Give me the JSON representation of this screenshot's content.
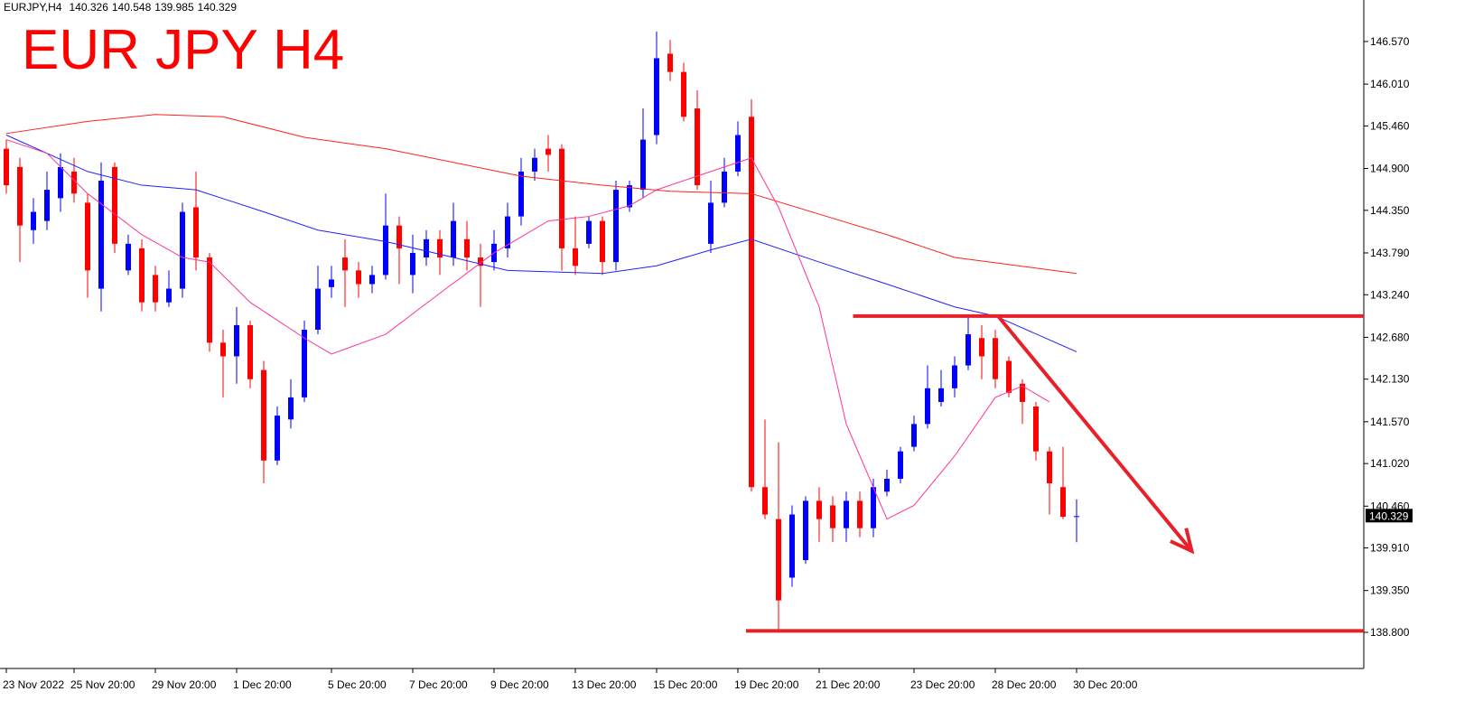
{
  "chart_data": {
    "type": "candlestick",
    "symbol": "EURJPY,H4",
    "title": "EUR JPY H4",
    "categories": [
      "23 Nov 2022",
      null,
      null,
      null,
      null,
      "25 Nov 20:00",
      null,
      null,
      null,
      null,
      null,
      "29 Nov 20:00",
      null,
      null,
      null,
      null,
      null,
      "1 Dec 20:00",
      null,
      null,
      null,
      null,
      null,
      null,
      "5 Dec 20:00",
      null,
      null,
      null,
      null,
      null,
      "7 Dec 20:00",
      null,
      null,
      null,
      null,
      null,
      "9 Dec 20:00",
      null,
      null,
      null,
      null,
      null,
      "13 Dec 20:00",
      null,
      null,
      null,
      null,
      null,
      "15 Dec 20:00",
      null,
      null,
      null,
      null,
      null,
      "19 Dec 20:00",
      null,
      null,
      null,
      null,
      null,
      "21 Dec 20:00",
      null,
      null,
      null,
      null,
      null,
      null,
      "23 Dec 20:00",
      null,
      null,
      null,
      null,
      null,
      "28 Dec 20:00",
      null,
      null,
      null,
      null,
      null,
      "30 Dec 20:00"
    ],
    "open": [
      145.16,
      144.92,
      144.09,
      144.21,
      144.51,
      144.86,
      144.45,
      143.32,
      144.92,
      143.56,
      143.85,
      143.5,
      143.14,
      143.32,
      144.39,
      143.73,
      142.61,
      142.43,
      142.84,
      142.25,
      141.06,
      141.6,
      141.89,
      142.78,
      143.34,
      143.73,
      143.56,
      143.38,
      143.5,
      144.15,
      143.5,
      143.73,
      143.97,
      143.73,
      143.97,
      143.73,
      143.67,
      143.85,
      144.27,
      144.86,
      145.16,
      145.16,
      143.85,
      143.91,
      144.21,
      143.67,
      144.39,
      144.62,
      145.34,
      146.41,
      146.17,
      145.69,
      143.91,
      144.45,
      144.86,
      145.58,
      140.71,
      140.29,
      139.52,
      139.75,
      140.53,
      140.47,
      140.17,
      140.53,
      140.17,
      140.65,
      140.82,
      141.24,
      141.54,
      141.83,
      142.01,
      142.31,
      142.67,
      142.67,
      142.37,
      142.07,
      141.77,
      141.18,
      140.71,
      140.326
    ],
    "high": [
      145.28,
      145.04,
      144.51,
      144.86,
      145.1,
      145.04,
      144.57,
      144.98,
      144.98,
      144.03,
      143.97,
      143.62,
      143.56,
      144.45,
      144.86,
      143.79,
      142.78,
      143.08,
      142.9,
      142.37,
      141.77,
      142.13,
      142.9,
      143.62,
      143.62,
      143.97,
      143.67,
      143.62,
      144.57,
      144.27,
      144.03,
      144.09,
      144.09,
      144.45,
      144.21,
      143.91,
      144.09,
      144.45,
      145.04,
      145.16,
      145.34,
      145.22,
      144.27,
      144.27,
      144.27,
      144.74,
      144.74,
      145.69,
      146.7,
      146.59,
      146.29,
      145.93,
      144.74,
      145.04,
      145.52,
      145.81,
      141.6,
      141.3,
      140.47,
      140.59,
      140.71,
      140.59,
      140.65,
      140.65,
      140.82,
      140.94,
      141.24,
      141.65,
      142.31,
      142.25,
      142.43,
      142.96,
      142.84,
      142.78,
      142.43,
      142.13,
      141.83,
      141.24,
      141.24,
      140.548
    ],
    "low": [
      144.57,
      143.67,
      143.91,
      144.09,
      144.33,
      144.45,
      143.2,
      143.02,
      143.79,
      143.5,
      143.02,
      143.02,
      143.08,
      143.2,
      143.56,
      142.49,
      141.89,
      142.07,
      142.01,
      140.76,
      141.0,
      141.48,
      141.83,
      142.72,
      143.2,
      143.08,
      143.2,
      143.26,
      143.44,
      143.38,
      143.26,
      143.62,
      143.5,
      143.62,
      143.56,
      143.08,
      143.56,
      143.73,
      144.15,
      144.74,
      144.86,
      143.56,
      143.5,
      143.85,
      143.5,
      143.56,
      144.33,
      144.51,
      145.22,
      146.05,
      145.52,
      144.62,
      143.79,
      144.39,
      144.8,
      140.65,
      140.29,
      138.8,
      139.4,
      139.7,
      139.99,
      139.99,
      139.99,
      140.05,
      140.05,
      140.59,
      140.76,
      141.18,
      141.48,
      141.77,
      141.89,
      142.25,
      142.13,
      142.01,
      141.89,
      141.54,
      141.06,
      140.35,
      140.29,
      139.985
    ],
    "close": [
      144.68,
      144.15,
      144.33,
      144.62,
      144.92,
      144.57,
      143.56,
      144.74,
      143.91,
      143.91,
      143.14,
      143.14,
      143.32,
      144.33,
      143.73,
      142.61,
      142.43,
      142.84,
      142.13,
      141.06,
      141.65,
      141.89,
      142.78,
      143.32,
      143.44,
      143.56,
      143.38,
      143.5,
      144.15,
      143.85,
      143.79,
      143.97,
      143.73,
      144.21,
      143.73,
      143.62,
      143.91,
      144.27,
      144.86,
      145.04,
      145.08,
      143.85,
      143.62,
      144.21,
      143.67,
      144.62,
      144.68,
      145.28,
      146.35,
      146.17,
      145.58,
      144.68,
      144.45,
      144.86,
      145.34,
      140.71,
      140.35,
      139.22,
      140.35,
      140.53,
      140.29,
      140.17,
      140.53,
      140.17,
      140.71,
      140.82,
      141.18,
      141.54,
      142.01,
      142.01,
      142.31,
      142.72,
      142.43,
      142.13,
      141.95,
      141.83,
      141.18,
      140.76,
      140.32,
      140.329
    ],
    "up_color": "#0000ff",
    "down_color": "#ff0000",
    "overlays": [
      {
        "color": "#ff2020",
        "x": [
          0,
          6,
          11,
          16,
          22,
          28,
          33,
          38,
          44,
          49,
          55,
          60,
          65,
          70,
          79
        ],
        "values": [
          145.36,
          145.52,
          145.61,
          145.58,
          145.31,
          145.16,
          144.98,
          144.8,
          144.68,
          144.6,
          144.57,
          144.3,
          144.03,
          143.73,
          143.52
        ]
      },
      {
        "color": "#2020ff",
        "x": [
          0,
          6,
          10,
          14,
          19,
          23,
          28,
          33,
          37,
          44,
          48,
          52,
          55,
          60,
          65,
          70,
          73,
          79
        ],
        "values": [
          145.34,
          144.86,
          144.68,
          144.62,
          144.33,
          144.09,
          143.94,
          143.73,
          143.56,
          143.52,
          143.62,
          143.83,
          143.97,
          143.67,
          143.38,
          143.08,
          142.96,
          142.49
        ]
      },
      {
        "color": "#ff3399",
        "x": [
          0,
          3,
          6,
          10,
          13,
          15,
          18,
          22,
          24,
          28,
          32,
          36,
          40,
          43,
          46,
          48,
          52,
          55,
          57,
          60,
          62,
          65,
          67,
          70,
          73,
          75,
          77
        ],
        "values": [
          145.28,
          145.1,
          144.57,
          144.03,
          143.73,
          143.67,
          143.14,
          142.67,
          142.46,
          142.72,
          143.26,
          143.79,
          144.21,
          144.27,
          144.41,
          144.62,
          144.86,
          145.04,
          144.39,
          143.08,
          141.54,
          140.29,
          140.47,
          141.12,
          141.89,
          142.04,
          141.83
        ]
      }
    ],
    "hlines": [
      {
        "value": 142.96,
        "x_start": 62.5
      },
      {
        "value": 138.82,
        "x_start": 54.6
      }
    ],
    "arrow": {
      "x": [
        73.2,
        87.5
      ],
      "y": [
        142.96,
        139.87
      ]
    },
    "annotation_color": "#e8202a",
    "ylim": [
      138.325,
      147.116
    ],
    "yticks": [
      {
        "value": 146.57,
        "label": "146.570"
      },
      {
        "value": 146.01,
        "label": "146.010"
      },
      {
        "value": 145.46,
        "label": "145.460"
      },
      {
        "value": 144.9,
        "label": "144.900"
      },
      {
        "value": 144.35,
        "label": "144.350"
      },
      {
        "value": 143.79,
        "label": "143.790"
      },
      {
        "value": 143.24,
        "label": "143.240"
      },
      {
        "value": 142.68,
        "label": "142.680"
      },
      {
        "value": 142.13,
        "label": "142.130"
      },
      {
        "value": 141.57,
        "label": "141.570"
      },
      {
        "value": 141.02,
        "label": "141.020"
      },
      {
        "value": 140.46,
        "label": "140.460"
      },
      {
        "value": 139.91,
        "label": "139.910"
      },
      {
        "value": 139.35,
        "label": "139.350"
      },
      {
        "value": 138.8,
        "label": "138.800"
      }
    ]
  }
}
